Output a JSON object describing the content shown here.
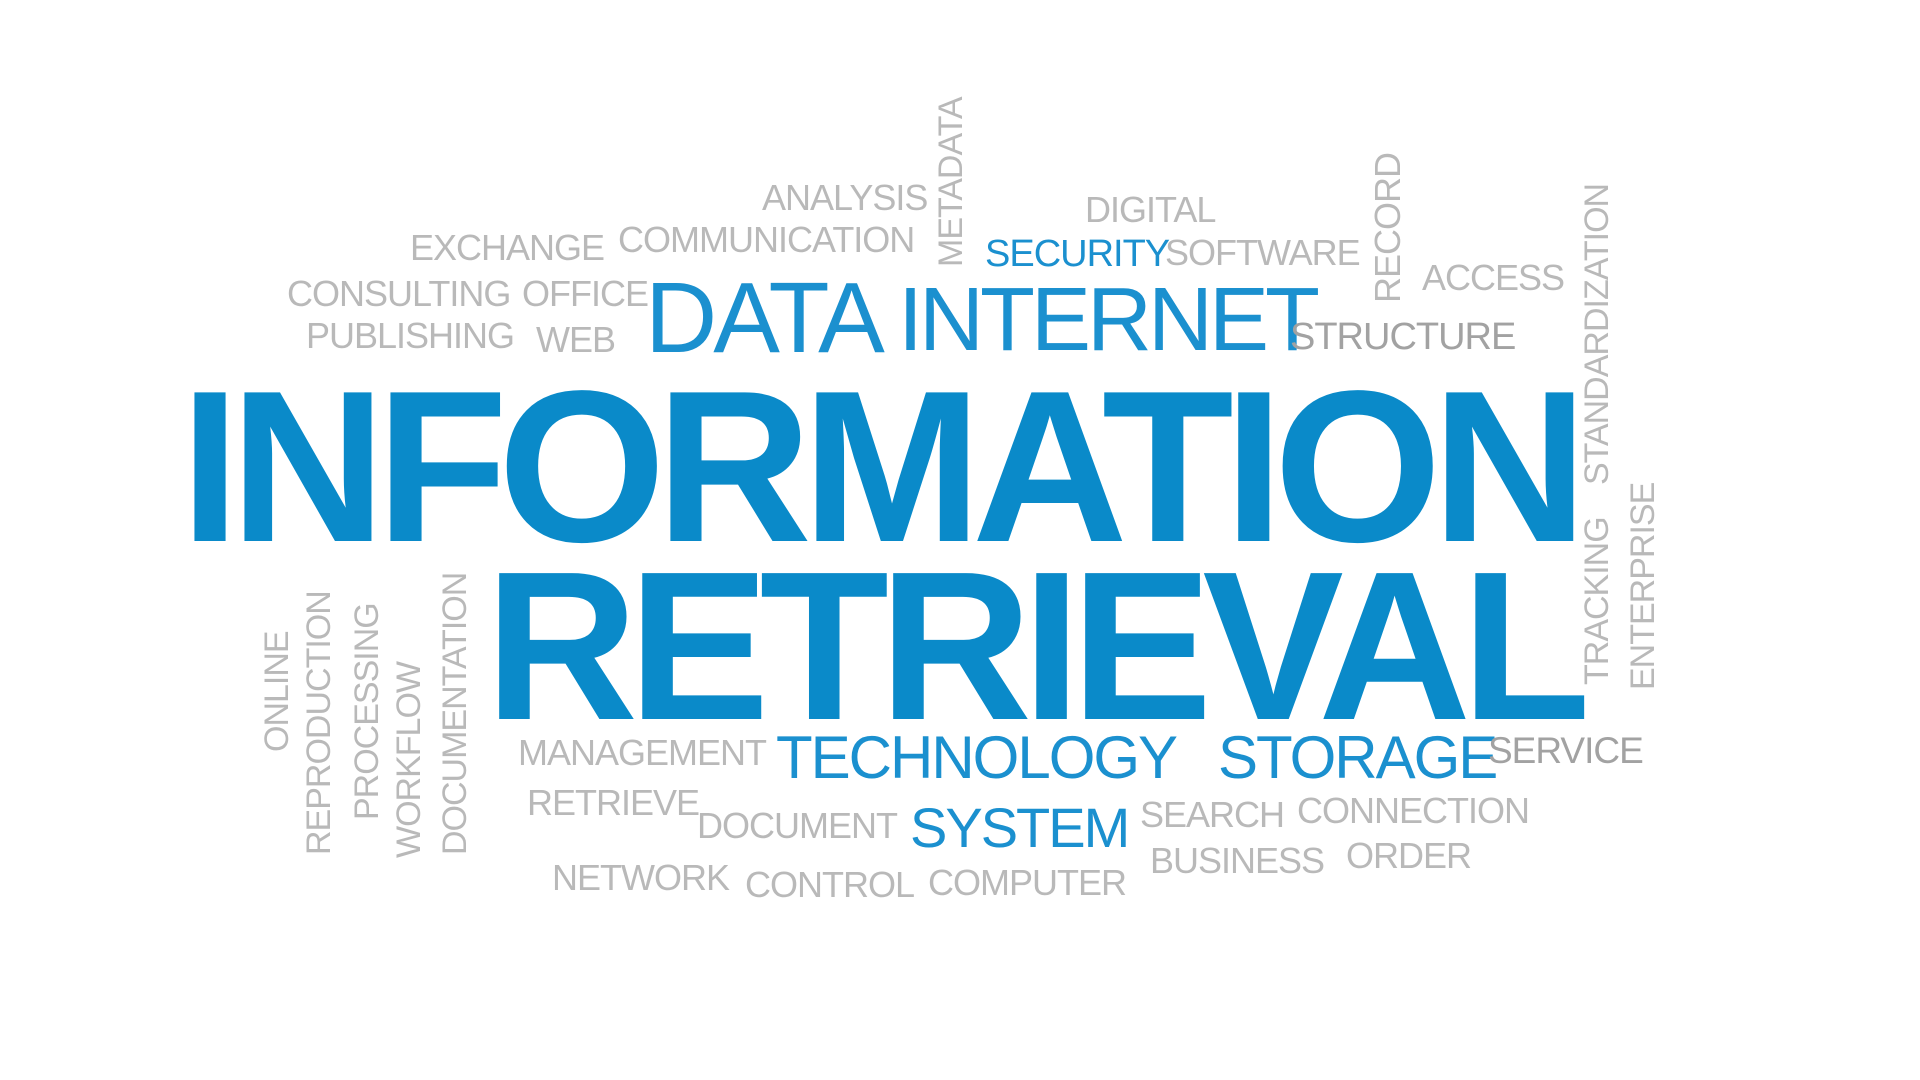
{
  "colors": {
    "background": "#ffffff",
    "primary_blue": "#0a8ac9",
    "secondary_blue": "#1b90cf",
    "light_grey": "#b9b9b9",
    "dark_grey": "#a2a2a2"
  },
  "words": {
    "information": "INFORMATION",
    "retrieval": "RETRIEVAL",
    "data": "DATA",
    "internet": "INTERNET",
    "technology": "TECHNOLOGY",
    "storage": "STORAGE",
    "system": "SYSTEM",
    "security": "SECURITY",
    "software": "SOFTWARE",
    "structure": "STRUCTURE",
    "service": "SERVICE",
    "analysis": "ANALYSIS",
    "digital": "DIGITAL",
    "exchange": "EXCHANGE",
    "communication": "COMMUNICATION",
    "consulting": "CONSULTING",
    "office": "OFFICE",
    "publishing": "PUBLISHING",
    "web": "WEB",
    "access": "ACCESS",
    "metadata": "METADATA",
    "record": "RECORD",
    "standardization": "STANDARDIZATION",
    "tracking": "TRACKING",
    "enterprise": "ENTERPRISE",
    "online": "ONLINE",
    "reproduction": "REPRODUCTION",
    "processing": "PROCESSING",
    "workflow": "WORKFLOW",
    "documentation": "DOCUMENTATION",
    "management": "MANAGEMENT",
    "retrieve": "RETRIEVE",
    "document": "DOCUMENT",
    "search": "SEARCH",
    "connection": "CONNECTION",
    "business": "BUSINESS",
    "order": "ORDER",
    "network": "NETWORK",
    "control": "CONTROL",
    "computer": "COMPUTER"
  }
}
